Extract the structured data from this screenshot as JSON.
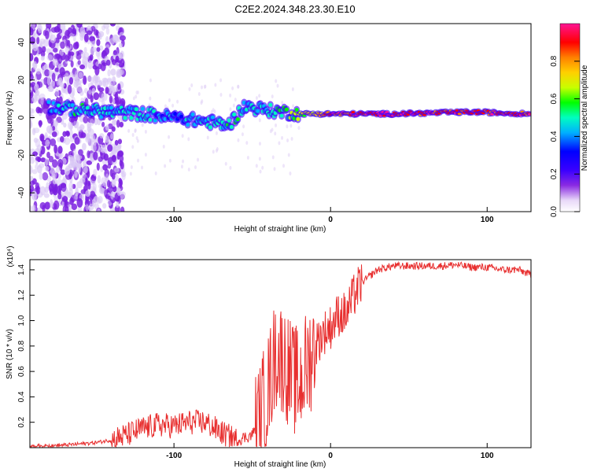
{
  "title": "C2E2.2024.348.23.30.E10",
  "chart_data": [
    {
      "type": "heatmap",
      "xlabel": "Height of straight line (km)",
      "ylabel": "Frequency (Hz)",
      "xlim": [
        -192,
        128
      ],
      "ylim": [
        -50,
        50
      ],
      "xticks": [
        -100,
        0,
        100
      ],
      "xtick_labels": [
        "-100",
        "0",
        "100"
      ],
      "yticks": [
        -40,
        -20,
        0,
        20,
        40
      ],
      "ytick_labels": [
        "-40",
        "-20",
        "0",
        "20",
        "40"
      ],
      "colorbar": {
        "label": "Normalized spectral amplitude",
        "range": [
          0,
          1
        ],
        "ticks": [
          0.0,
          0.2,
          0.4,
          0.6,
          0.8
        ],
        "tick_labels": [
          "0.0",
          "0.2",
          "0.4",
          "0.6",
          "0.8"
        ],
        "colors": [
          "#ffffff",
          "#e8d8f8",
          "#8a2be2",
          "#3a00ff",
          "#0000ff",
          "#00b0ff",
          "#00ffc0",
          "#00ff00",
          "#c8ff00",
          "#ffd000",
          "#ff8000",
          "#ff0000",
          "#ff1493"
        ]
      },
      "trace": [
        {
          "x": -180,
          "y": 6,
          "level": 0.4
        },
        {
          "x": -160,
          "y": 4,
          "level": 0.5
        },
        {
          "x": -140,
          "y": 3,
          "level": 0.45
        },
        {
          "x": -120,
          "y": 2,
          "level": 0.45
        },
        {
          "x": -100,
          "y": 0,
          "level": 0.4
        },
        {
          "x": -80,
          "y": -2,
          "level": 0.45
        },
        {
          "x": -65,
          "y": -4,
          "level": 0.5
        },
        {
          "x": -55,
          "y": 6,
          "level": 0.45
        },
        {
          "x": -40,
          "y": 4,
          "level": 0.5
        },
        {
          "x": -20,
          "y": 2,
          "level": 0.6
        },
        {
          "x": 0,
          "y": 2,
          "level": 0.9
        },
        {
          "x": 40,
          "y": 2,
          "level": 0.95
        },
        {
          "x": 90,
          "y": 3,
          "level": 0.9
        },
        {
          "x": 128,
          "y": 2,
          "level": 0.9
        }
      ],
      "colorbar_grid": "off"
    },
    {
      "type": "line",
      "xlabel": "Height of straight line (km)",
      "ylabel": "SNR (10 * v/v)",
      "y_multiplier_label": "(x10⁴)",
      "xlim": [
        -192,
        128
      ],
      "ylim": [
        0,
        1.48
      ],
      "xticks": [
        -100,
        0,
        100
      ],
      "xtick_labels": [
        "-100",
        "0",
        "100"
      ],
      "yticks": [
        0.2,
        0.4,
        0.6,
        0.8,
        1.0,
        1.2,
        1.4
      ],
      "ytick_labels": [
        "0.2",
        "0.4",
        "0.6",
        "0.8",
        "1.0",
        "1.2",
        "1.4"
      ],
      "color": "#e83030",
      "series": [
        {
          "x": [
            -192,
            -170,
            -150,
            -140,
            -130,
            -120,
            -110,
            -100,
            -90,
            -80,
            -70,
            -60,
            -50,
            -45,
            -40,
            -35,
            -30,
            -25,
            -20,
            -15,
            -10,
            -5,
            0,
            5,
            10,
            15,
            20,
            25,
            30,
            40,
            50,
            60,
            70,
            80,
            90,
            100,
            110,
            120,
            128
          ],
          "y": [
            0.01,
            0.02,
            0.04,
            0.06,
            0.1,
            0.15,
            0.18,
            0.17,
            0.2,
            0.2,
            0.12,
            0.06,
            0.1,
            0.25,
            0.45,
            0.75,
            0.7,
            0.55,
            0.5,
            0.65,
            0.8,
            0.9,
            0.95,
            1.05,
            1.05,
            1.2,
            1.3,
            1.35,
            1.4,
            1.43,
            1.43,
            1.43,
            1.43,
            1.44,
            1.42,
            1.42,
            1.4,
            1.4,
            1.36
          ]
        }
      ]
    }
  ]
}
